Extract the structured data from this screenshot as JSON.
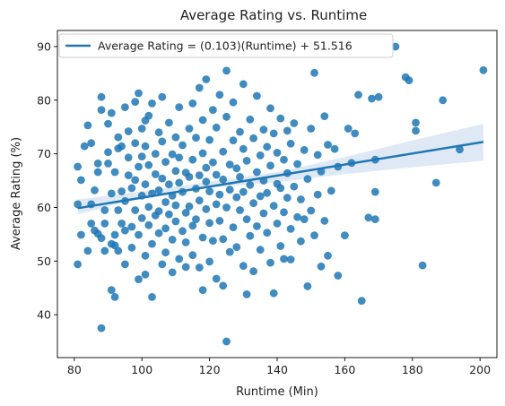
{
  "chart_data": {
    "type": "scatter",
    "title": "Average Rating vs. Runtime",
    "xlabel": "Runtime (Min)",
    "ylabel": "Average Rating (%)",
    "xlim": [
      75,
      205
    ],
    "ylim": [
      32,
      93
    ],
    "xticks": [
      80,
      100,
      120,
      140,
      160,
      180,
      200
    ],
    "yticks": [
      40,
      50,
      60,
      70,
      80,
      90
    ],
    "grid": false,
    "legend_position": "top-left",
    "colors": {
      "points": "#1f77b4",
      "line": "#1f77b4",
      "band": "#aec7e8"
    },
    "regression": {
      "label": "Average Rating = (0.103)(Runtime) + 51.516",
      "slope": 0.103,
      "intercept": 51.516,
      "x_range": [
        81,
        201
      ],
      "ci_lower": [
        [
          81,
          58.7
        ],
        [
          100,
          61.8
        ],
        [
          120,
          63.7
        ],
        [
          140,
          64.7
        ],
        [
          160,
          66.2
        ],
        [
          180,
          67.5
        ],
        [
          201,
          68.7
        ]
      ],
      "ci_upper": [
        [
          81,
          61.5
        ],
        [
          100,
          63.0
        ],
        [
          120,
          64.8
        ],
        [
          140,
          66.6
        ],
        [
          160,
          69.4
        ],
        [
          180,
          72.5
        ],
        [
          201,
          75.6
        ]
      ]
    },
    "points": [
      [
        81,
        49.4
      ],
      [
        81,
        60.6
      ],
      [
        82,
        54.9
      ],
      [
        82,
        65.1
      ],
      [
        81,
        67.6
      ],
      [
        83,
        71.4
      ],
      [
        84,
        75.3
      ],
      [
        84,
        51.9
      ],
      [
        85,
        60.6
      ],
      [
        85,
        72.0
      ],
      [
        85,
        57.0
      ],
      [
        86,
        55.7
      ],
      [
        86,
        63.2
      ],
      [
        87,
        55.1
      ],
      [
        87,
        66.6
      ],
      [
        87,
        68.2
      ],
      [
        88,
        78.2
      ],
      [
        88,
        37.5
      ],
      [
        88,
        54.3
      ],
      [
        88,
        80.6
      ],
      [
        89,
        59.5
      ],
      [
        89,
        51.9
      ],
      [
        89,
        57.0
      ],
      [
        90,
        68.2
      ],
      [
        90,
        75.6
      ],
      [
        90,
        70.3
      ],
      [
        91,
        53.2
      ],
      [
        91,
        62.6
      ],
      [
        91,
        44.6
      ],
      [
        91,
        77.6
      ],
      [
        92,
        52.9
      ],
      [
        92,
        54.9
      ],
      [
        92,
        43.3
      ],
      [
        92,
        66.6
      ],
      [
        93,
        51.9
      ],
      [
        93,
        71.0
      ],
      [
        93,
        59.5
      ],
      [
        93,
        73.1
      ],
      [
        94,
        63.0
      ],
      [
        94,
        71.4
      ],
      [
        94,
        57.0
      ],
      [
        95,
        78.7
      ],
      [
        95,
        55.7
      ],
      [
        95,
        61.2
      ],
      [
        95,
        49.4
      ],
      [
        96,
        66.0
      ],
      [
        96,
        74.2
      ],
      [
        96,
        69.3
      ],
      [
        97,
        56.4
      ],
      [
        97,
        63.6
      ],
      [
        97,
        52.5
      ],
      [
        98,
        79.7
      ],
      [
        98,
        72.0
      ],
      [
        98,
        59.5
      ],
      [
        98,
        65.1
      ],
      [
        99,
        67.6
      ],
      [
        99,
        54.9
      ],
      [
        99,
        81.3
      ],
      [
        99,
        46.6
      ],
      [
        100,
        62.2
      ],
      [
        100,
        69.5
      ],
      [
        100,
        74.7
      ],
      [
        100,
        58.0
      ],
      [
        101,
        51.0
      ],
      [
        101,
        47.5
      ],
      [
        101,
        76.2
      ],
      [
        101,
        64.3
      ],
      [
        101,
        71.4
      ],
      [
        102,
        56.7
      ],
      [
        102,
        60.1
      ],
      [
        102,
        67.9
      ],
      [
        102,
        77.1
      ],
      [
        103,
        53.2
      ],
      [
        103,
        43.3
      ],
      [
        103,
        62.6
      ],
      [
        103,
        79.4
      ],
      [
        104,
        66.2
      ],
      [
        104,
        58.5
      ],
      [
        104,
        70.0
      ],
      [
        105,
        63.2
      ],
      [
        105,
        55.2
      ],
      [
        105,
        74.0
      ],
      [
        105,
        59.3
      ],
      [
        106,
        49.4
      ],
      [
        106,
        65.4
      ],
      [
        106,
        80.6
      ],
      [
        106,
        72.3
      ],
      [
        107,
        61.0
      ],
      [
        107,
        56.1
      ],
      [
        107,
        68.5
      ],
      [
        107,
        51.6
      ],
      [
        108,
        64.3
      ],
      [
        108,
        75.8
      ],
      [
        108,
        58.7
      ],
      [
        109,
        69.9
      ],
      [
        109,
        54.0
      ],
      [
        109,
        62.2
      ],
      [
        109,
        47.9
      ],
      [
        110,
        73.1
      ],
      [
        110,
        60.4
      ],
      [
        110,
        66.8
      ],
      [
        110,
        57.4
      ],
      [
        111,
        64.6
      ],
      [
        111,
        50.4
      ],
      [
        111,
        78.7
      ],
      [
        111,
        69.3
      ],
      [
        112,
        55.6
      ],
      [
        112,
        62.9
      ],
      [
        112,
        71.6
      ],
      [
        113,
        59.0
      ],
      [
        113,
        48.9
      ],
      [
        113,
        66.5
      ],
      [
        113,
        53.5
      ],
      [
        114,
        65.7
      ],
      [
        114,
        74.7
      ],
      [
        114,
        60.2
      ],
      [
        115,
        56.6
      ],
      [
        115,
        79.4
      ],
      [
        115,
        68.9
      ],
      [
        115,
        51.1
      ],
      [
        116,
        63.5
      ],
      [
        116,
        73.0
      ],
      [
        116,
        57.8
      ],
      [
        117,
        48.8
      ],
      [
        117,
        66.0
      ],
      [
        117,
        82.3
      ],
      [
        117,
        61.3
      ],
      [
        118,
        70.1
      ],
      [
        118,
        54.4
      ],
      [
        118,
        76.3
      ],
      [
        118,
        44.6
      ],
      [
        119,
        64.8
      ],
      [
        119,
        59.7
      ],
      [
        119,
        83.9
      ],
      [
        119,
        67.4
      ],
      [
        120,
        72.6
      ],
      [
        120,
        57.1
      ],
      [
        120,
        49.9
      ],
      [
        120,
        63.0
      ],
      [
        121,
        68.4
      ],
      [
        121,
        78.2
      ],
      [
        121,
        53.8
      ],
      [
        122,
        60.6
      ],
      [
        122,
        74.9
      ],
      [
        122,
        66.1
      ],
      [
        122,
        46.7
      ],
      [
        123,
        81.0
      ],
      [
        123,
        57.5
      ],
      [
        123,
        62.4
      ],
      [
        124,
        70.4
      ],
      [
        124,
        54.1
      ],
      [
        124,
        65.2
      ],
      [
        124,
        45.4
      ],
      [
        125,
        85.5
      ],
      [
        125,
        60.0
      ],
      [
        125,
        35.0
      ],
      [
        125,
        76.9
      ],
      [
        126,
        68.0
      ],
      [
        126,
        51.7
      ],
      [
        126,
        63.3
      ],
      [
        127,
        72.5
      ],
      [
        127,
        56.3
      ],
      [
        127,
        79.6
      ],
      [
        128,
        61.9
      ],
      [
        128,
        67.3
      ],
      [
        128,
        52.6
      ],
      [
        129,
        74.1
      ],
      [
        129,
        59.5
      ],
      [
        129,
        65.7
      ],
      [
        130,
        70.9
      ],
      [
        130,
        49.1
      ],
      [
        130,
        83.0
      ],
      [
        130,
        62.9
      ],
      [
        131,
        57.8
      ],
      [
        131,
        43.8
      ],
      [
        131,
        68.7
      ],
      [
        132,
        64.2
      ],
      [
        132,
        76.4
      ],
      [
        132,
        54.7
      ],
      [
        133,
        60.8
      ],
      [
        133,
        72.9
      ],
      [
        133,
        48.1
      ],
      [
        134,
        66.6
      ],
      [
        134,
        56.5
      ],
      [
        134,
        80.8
      ],
      [
        135,
        62.1
      ],
      [
        135,
        69.7
      ],
      [
        135,
        52.1
      ],
      [
        136,
        74.5
      ],
      [
        136,
        58.9
      ],
      [
        136,
        65.0
      ],
      [
        137,
        55.3
      ],
      [
        137,
        71.3
      ],
      [
        137,
        62.7
      ],
      [
        138,
        78.5
      ],
      [
        138,
        49.7
      ],
      [
        138,
        67.8
      ],
      [
        139,
        60.3
      ],
      [
        139,
        73.8
      ],
      [
        139,
        44.0
      ],
      [
        140,
        64.4
      ],
      [
        140,
        57.0
      ],
      [
        140,
        70.2
      ],
      [
        141,
        76.6
      ],
      [
        141,
        52.8
      ],
      [
        141,
        63.6
      ],
      [
        142,
        68.9
      ],
      [
        142,
        59.1
      ],
      [
        142,
        50.4
      ],
      [
        143,
        74.3
      ],
      [
        143,
        61.8
      ],
      [
        143,
        66.4
      ],
      [
        144,
        56.0
      ],
      [
        144,
        71.9
      ],
      [
        144,
        50.3
      ],
      [
        145,
        63.9
      ],
      [
        145,
        75.7
      ],
      [
        146,
        58.2
      ],
      [
        146,
        68.1
      ],
      [
        147,
        61.5
      ],
      [
        147,
        53.7
      ],
      [
        148,
        70.7
      ],
      [
        148,
        57.8
      ],
      [
        149,
        65.3
      ],
      [
        149,
        45.3
      ],
      [
        150,
        74.7
      ],
      [
        150,
        59.4
      ],
      [
        151,
        85.1
      ],
      [
        151,
        54.8
      ],
      [
        152,
        69.8
      ],
      [
        152,
        62.4
      ],
      [
        153,
        49.0
      ],
      [
        153,
        66.7
      ],
      [
        154,
        77.0
      ],
      [
        154,
        57.5
      ],
      [
        155,
        71.7
      ],
      [
        155,
        51.0
      ],
      [
        156,
        63.1
      ],
      [
        157,
        70.9
      ],
      [
        158,
        47.3
      ],
      [
        158,
        67.6
      ],
      [
        160,
        54.8
      ],
      [
        161,
        74.7
      ],
      [
        162,
        68.3
      ],
      [
        163,
        73.8
      ],
      [
        164,
        81.0
      ],
      [
        165,
        42.6
      ],
      [
        167,
        58.1
      ],
      [
        168,
        80.3
      ],
      [
        169,
        62.9
      ],
      [
        169,
        57.8
      ],
      [
        169,
        68.9
      ],
      [
        170,
        80.6
      ],
      [
        175,
        90.0
      ],
      [
        178,
        84.3
      ],
      [
        179,
        83.7
      ],
      [
        181,
        75.8
      ],
      [
        181,
        74.3
      ],
      [
        183,
        49.2
      ],
      [
        187,
        64.6
      ],
      [
        189,
        80.0
      ],
      [
        194,
        70.8
      ],
      [
        201,
        85.6
      ]
    ]
  }
}
